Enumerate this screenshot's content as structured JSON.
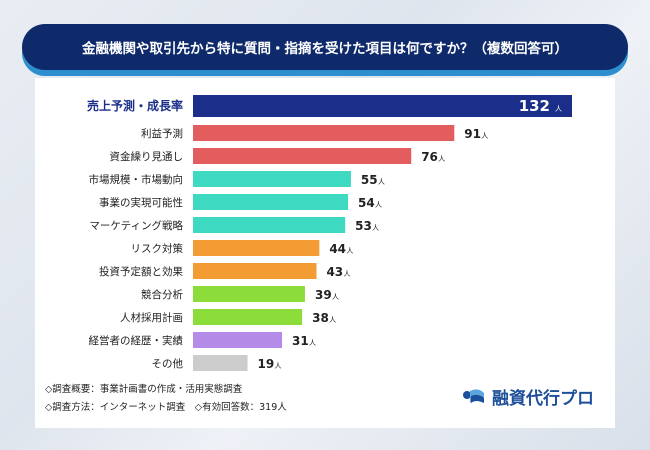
{
  "title": "金融機関や取引先から特に質問・指摘を受けた項目は何ですか？（複数回答可）",
  "chart_data": {
    "type": "bar",
    "orientation": "horizontal",
    "title": "金融機関や取引先から特に質問・指摘を受けた項目は何ですか？（複数回答可）",
    "unit": "人",
    "categories": [
      "売上予測・成長率",
      "利益予測",
      "資金繰り見通し",
      "市場規模・市場動向",
      "事業の実現可能性",
      "マーケティング戦略",
      "リスク対策",
      "投資予定額と効果",
      "競合分析",
      "人材採用計画",
      "経営者の経歴・実績",
      "その他"
    ],
    "values": [
      132,
      91,
      76,
      55,
      54,
      53,
      44,
      43,
      39,
      38,
      31,
      19
    ],
    "colors": [
      "#1b2f8a",
      "#e35d5f",
      "#e35d5f",
      "#3dd9c0",
      "#3dd9c0",
      "#3dd9c0",
      "#f39c33",
      "#f39c33",
      "#8ddd3a",
      "#8ddd3a",
      "#b48be6",
      "#cccccc"
    ],
    "highlight_label_color": "#1b2f8a",
    "grid": false
  },
  "footer": {
    "line1": "◇調査概要：事業計画書の作成・活用実態調査",
    "line2": "◇調査方法：インターネット調査　◇有効回答数：319人"
  },
  "logo": {
    "text": "融資代行プロ",
    "icon": "wave-logo-icon"
  }
}
